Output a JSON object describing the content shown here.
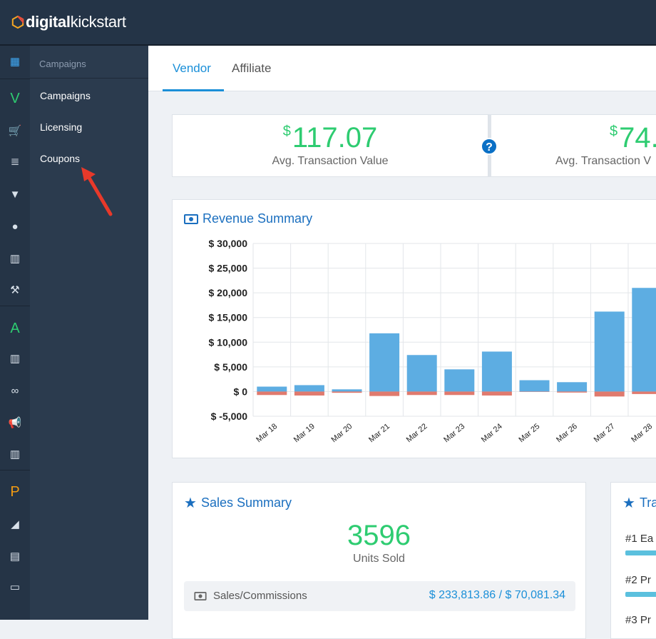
{
  "brand": {
    "prefix": "digital",
    "suffix": "kickstart"
  },
  "iconbar": {
    "items": [
      {
        "name": "dashboard-grid-icon",
        "glyph": "▦"
      },
      {
        "name": "vendor-section-letter",
        "glyph": "V",
        "color": "#2ecc71"
      },
      {
        "name": "cart-icon",
        "glyph": "🛒"
      },
      {
        "name": "list-icon",
        "glyph": "≣"
      },
      {
        "name": "filter-icon",
        "glyph": "▼"
      },
      {
        "name": "user-icon",
        "glyph": "●"
      },
      {
        "name": "bar-chart-icon",
        "glyph": "▥"
      },
      {
        "name": "wrench-icon",
        "glyph": "⚒"
      },
      {
        "name": "affiliate-section-letter",
        "glyph": "A",
        "color": "#2ecc71"
      },
      {
        "name": "bar-chart-icon-2",
        "glyph": "▥"
      },
      {
        "name": "link-icon",
        "glyph": "∞"
      },
      {
        "name": "megaphone-icon",
        "glyph": "📢"
      },
      {
        "name": "bar-chart-icon-3",
        "glyph": "▥"
      },
      {
        "name": "p-section-letter",
        "glyph": "P",
        "color": "#f39c12"
      },
      {
        "name": "area-chart-icon",
        "glyph": "◢"
      },
      {
        "name": "document-icon",
        "glyph": "▤"
      },
      {
        "name": "monitor-icon",
        "glyph": "▭"
      }
    ]
  },
  "subnav": {
    "header": "Campaigns",
    "items": [
      "Campaigns",
      "Licensing",
      "Coupons"
    ]
  },
  "tabs": {
    "vendor": "Vendor",
    "affiliate": "Affiliate"
  },
  "stats": {
    "left": {
      "currency": "$",
      "value": "117.07",
      "label": "Avg. Transaction Value"
    },
    "right": {
      "currency": "$",
      "value": "74.",
      "label": "Avg. Transaction V"
    },
    "help": "?"
  },
  "revenue": {
    "title": "Revenue Summary"
  },
  "chart_data": {
    "type": "bar",
    "categories": [
      "Mar 18",
      "Mar 19",
      "Mar 20",
      "Mar 21",
      "Mar 22",
      "Mar 23",
      "Mar 24",
      "Mar 25",
      "Mar 26",
      "Mar 27",
      "Mar 28"
    ],
    "series": [
      {
        "values": [
          1000,
          1300,
          450,
          11800,
          7400,
          4500,
          8100,
          2300,
          1900,
          16200,
          21000
        ],
        "color": "#5dade2"
      },
      {
        "values": [
          -700,
          -800,
          -250,
          -900,
          -700,
          -700,
          -800,
          0,
          -200,
          -1000,
          -500
        ],
        "color": "#e07a6e"
      }
    ],
    "yticks": [
      "$ 30,000",
      "$ 25,000",
      "$ 20,000",
      "$ 15,000",
      "$ 10,000",
      "$ 5,000",
      "$ 0",
      "$ -5,000"
    ],
    "ylim": [
      -5000,
      30000
    ]
  },
  "sales": {
    "title": "Sales Summary",
    "units": "3596",
    "units_label": "Units Sold",
    "row_label": "Sales/Commissions",
    "row_value": "$ 233,813.86 / $ 70,081.34"
  },
  "top": {
    "title": "Tra",
    "ranks": [
      "#1  Ea",
      "#2  Pr",
      "#3  Pr"
    ]
  }
}
